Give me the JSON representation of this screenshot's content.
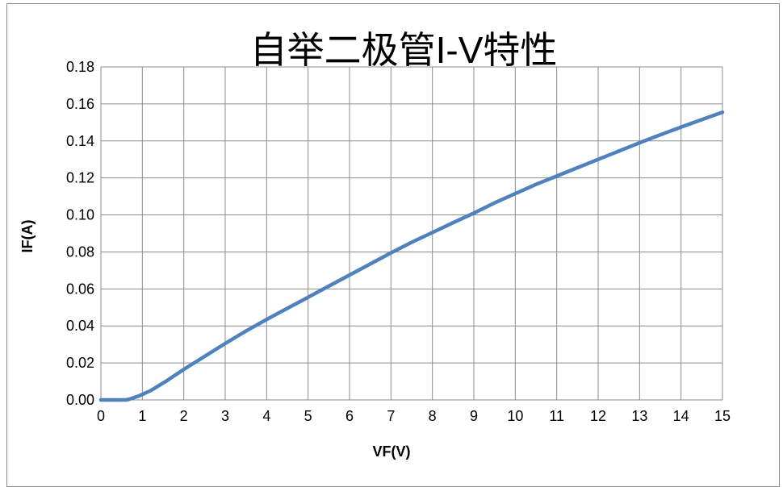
{
  "chart_data": {
    "type": "line",
    "title": "自举二极管I-V特性",
    "xlabel": "VF(V)",
    "ylabel": "IF(A)",
    "xlim": [
      0,
      15
    ],
    "ylim": [
      0,
      0.18
    ],
    "xticks": [
      "0",
      "1",
      "2",
      "3",
      "4",
      "5",
      "6",
      "7",
      "8",
      "9",
      "10",
      "11",
      "12",
      "13",
      "14",
      "15"
    ],
    "yticks": [
      "0.00",
      "0.02",
      "0.04",
      "0.06",
      "0.08",
      "0.10",
      "0.12",
      "0.14",
      "0.16",
      "0.18"
    ],
    "grid": true,
    "legend": "none",
    "series": [
      {
        "color": "#4f81bd",
        "x": [
          0,
          0.6,
          0.7,
          0.9,
          1.2,
          1.6,
          2,
          2.5,
          3,
          3.5,
          4,
          4.5,
          5,
          5.5,
          6,
          6.5,
          7,
          7.5,
          8,
          8.5,
          9,
          9.5,
          10,
          10.5,
          11,
          11.5,
          12,
          12.5,
          13,
          13.5,
          14,
          14.5,
          15
        ],
        "y": [
          0,
          0,
          0.0005,
          0.002,
          0.005,
          0.0105,
          0.0165,
          0.0235,
          0.0305,
          0.0372,
          0.0435,
          0.0495,
          0.0555,
          0.0615,
          0.0675,
          0.0735,
          0.0795,
          0.0852,
          0.0905,
          0.0958,
          0.101,
          0.1065,
          0.1115,
          0.1165,
          0.121,
          0.1255,
          0.13,
          0.1345,
          0.139,
          0.1433,
          0.1475,
          0.1515,
          0.1555
        ]
      }
    ]
  }
}
